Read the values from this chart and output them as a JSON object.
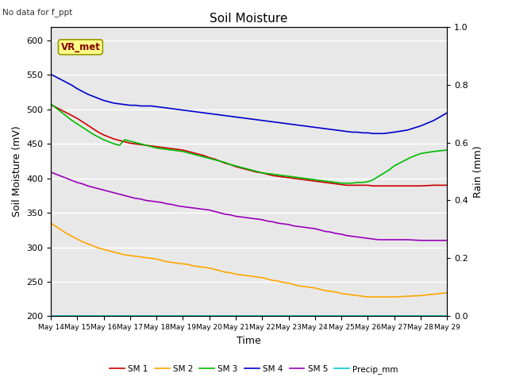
{
  "title": "Soil Moisture",
  "note": "No data for f_ppt",
  "xlabel": "Time",
  "ylabel_left": "Soil Moisture (mV)",
  "ylabel_right": "Rain (mm)",
  "vr_met_label": "VR_met",
  "x_start": 14,
  "x_end": 29,
  "ylim_left": [
    200,
    620
  ],
  "ylim_right": [
    0.0,
    1.0
  ],
  "yticks_left": [
    200,
    250,
    300,
    350,
    400,
    450,
    500,
    550,
    600
  ],
  "yticks_right": [
    0.0,
    0.2,
    0.4,
    0.6,
    0.8,
    1.0
  ],
  "x_ticks": [
    14,
    15,
    16,
    17,
    18,
    19,
    20,
    21,
    22,
    23,
    24,
    25,
    26,
    27,
    28,
    29
  ],
  "x_tick_labels": [
    "May 14",
    "May 15",
    "May 16",
    "May 17",
    "May 18",
    "May 19",
    "May 20",
    "May 21",
    "May 22",
    "May 23",
    "May 24",
    "May 25",
    "May 26",
    "May 27",
    "May 28",
    "May 29"
  ],
  "background_color": "#e8e8e8",
  "grid_color": "#ffffff",
  "series": {
    "SM1": {
      "color": "#cc0000",
      "label": "SM 1",
      "x": [
        14,
        14.2,
        14.4,
        14.6,
        14.8,
        15,
        15.2,
        15.4,
        15.6,
        15.8,
        16,
        16.2,
        16.4,
        16.6,
        16.8,
        17,
        17.2,
        17.4,
        17.6,
        17.8,
        18,
        18.2,
        18.4,
        18.6,
        18.8,
        19,
        19.2,
        19.4,
        19.6,
        19.8,
        20,
        20.2,
        20.4,
        20.6,
        20.8,
        21,
        21.2,
        21.4,
        21.6,
        21.8,
        22,
        22.2,
        22.4,
        22.6,
        22.8,
        23,
        23.2,
        23.4,
        23.6,
        23.8,
        24,
        24.2,
        24.4,
        24.6,
        24.8,
        25,
        25.2,
        25.4,
        25.6,
        25.8,
        26,
        26.2,
        26.4,
        26.6,
        26.8,
        27,
        27.5,
        28,
        28.5,
        29
      ],
      "y": [
        507,
        503,
        499,
        495,
        491,
        487,
        482,
        477,
        472,
        467,
        463,
        460,
        457,
        455,
        453,
        451,
        450,
        449,
        448,
        447,
        446,
        445,
        444,
        443,
        442,
        441,
        439,
        437,
        435,
        433,
        430,
        428,
        425,
        422,
        420,
        417,
        415,
        413,
        411,
        409,
        408,
        406,
        404,
        403,
        402,
        401,
        400,
        399,
        398,
        397,
        396,
        395,
        394,
        393,
        392,
        391,
        390,
        390,
        390,
        390,
        390,
        389,
        389,
        389,
        389,
        389,
        389,
        389,
        390,
        390
      ]
    },
    "SM2": {
      "color": "#ffa500",
      "label": "SM 2",
      "x": [
        14,
        14.2,
        14.4,
        14.6,
        14.8,
        15,
        15.2,
        15.4,
        15.6,
        15.8,
        16,
        16.2,
        16.4,
        16.6,
        16.8,
        17,
        17.2,
        17.4,
        17.6,
        17.8,
        18,
        18.2,
        18.4,
        18.6,
        18.8,
        19,
        19.2,
        19.4,
        19.6,
        19.8,
        20,
        20.2,
        20.4,
        20.6,
        20.8,
        21,
        21.2,
        21.4,
        21.6,
        21.8,
        22,
        22.2,
        22.4,
        22.6,
        22.8,
        23,
        23.2,
        23.4,
        23.6,
        23.8,
        24,
        24.2,
        24.4,
        24.6,
        24.8,
        25,
        25.2,
        25.4,
        25.6,
        25.8,
        26,
        26.2,
        26.4,
        26.6,
        26.8,
        27,
        27.5,
        28,
        28.5,
        29
      ],
      "y": [
        335,
        330,
        325,
        320,
        316,
        312,
        308,
        305,
        302,
        299,
        297,
        295,
        293,
        291,
        289,
        288,
        287,
        286,
        285,
        284,
        283,
        281,
        279,
        278,
        277,
        276,
        275,
        273,
        272,
        271,
        270,
        268,
        266,
        264,
        263,
        261,
        260,
        259,
        258,
        257,
        256,
        254,
        252,
        251,
        249,
        248,
        246,
        244,
        243,
        242,
        241,
        239,
        237,
        236,
        235,
        233,
        232,
        231,
        230,
        229,
        228,
        228,
        228,
        228,
        228,
        228,
        229,
        230,
        232,
        234
      ]
    },
    "SM3": {
      "color": "#00bb00",
      "label": "SM 3",
      "x": [
        14,
        14.2,
        14.4,
        14.6,
        14.8,
        15,
        15.2,
        15.4,
        15.6,
        15.8,
        16,
        16.2,
        16.4,
        16.6,
        16.8,
        17,
        17.2,
        17.4,
        17.6,
        17.8,
        18,
        18.2,
        18.4,
        18.6,
        18.8,
        19,
        19.2,
        19.4,
        19.6,
        19.8,
        20,
        20.2,
        20.4,
        20.6,
        20.8,
        21,
        21.2,
        21.4,
        21.6,
        21.8,
        22,
        22.2,
        22.4,
        22.6,
        22.8,
        23,
        23.2,
        23.4,
        23.6,
        23.8,
        24,
        24.2,
        24.4,
        24.6,
        24.8,
        25,
        25.2,
        25.4,
        25.6,
        25.8,
        26,
        26.2,
        26.5,
        26.8,
        27,
        27.3,
        27.6,
        28,
        28.5,
        29
      ],
      "y": [
        508,
        502,
        496,
        490,
        484,
        479,
        474,
        469,
        464,
        460,
        456,
        453,
        450,
        448,
        456,
        454,
        452,
        450,
        448,
        446,
        444,
        443,
        442,
        441,
        440,
        439,
        437,
        435,
        433,
        431,
        429,
        427,
        425,
        423,
        420,
        418,
        416,
        414,
        412,
        410,
        408,
        407,
        406,
        405,
        404,
        403,
        402,
        401,
        400,
        399,
        398,
        397,
        396,
        395,
        394,
        393,
        393,
        393,
        394,
        394,
        395,
        398,
        405,
        412,
        418,
        424,
        430,
        436,
        439,
        441
      ]
    },
    "SM4": {
      "color": "#0000cc",
      "label": "SM 4",
      "x": [
        14,
        14.2,
        14.4,
        14.6,
        14.8,
        15,
        15.2,
        15.4,
        15.6,
        15.8,
        16,
        16.2,
        16.4,
        16.6,
        16.8,
        17,
        17.2,
        17.4,
        17.6,
        17.8,
        18,
        18.2,
        18.4,
        18.6,
        18.8,
        19,
        19.2,
        19.4,
        19.6,
        19.8,
        20,
        20.2,
        20.4,
        20.6,
        20.8,
        21,
        21.2,
        21.4,
        21.6,
        21.8,
        22,
        22.2,
        22.4,
        22.6,
        22.8,
        23,
        23.2,
        23.4,
        23.6,
        23.8,
        24,
        24.2,
        24.4,
        24.6,
        24.8,
        25,
        25.2,
        25.4,
        25.6,
        25.8,
        26,
        26.2,
        26.4,
        26.6,
        26.8,
        27,
        27.5,
        28,
        28.5,
        29
      ],
      "y": [
        551,
        547,
        543,
        539,
        535,
        530,
        526,
        522,
        519,
        516,
        513,
        511,
        509,
        508,
        507,
        506,
        506,
        505,
        505,
        505,
        504,
        503,
        502,
        501,
        500,
        499,
        498,
        497,
        496,
        495,
        494,
        493,
        492,
        491,
        490,
        489,
        488,
        487,
        486,
        485,
        484,
        483,
        482,
        481,
        480,
        479,
        478,
        477,
        476,
        475,
        474,
        473,
        472,
        471,
        470,
        469,
        468,
        467,
        467,
        466,
        466,
        465,
        465,
        465,
        466,
        467,
        470,
        476,
        484,
        495
      ]
    },
    "SM5": {
      "color": "#9900bb",
      "label": "SM 5",
      "x": [
        14,
        14.2,
        14.4,
        14.6,
        14.8,
        15,
        15.2,
        15.4,
        15.6,
        15.8,
        16,
        16.2,
        16.4,
        16.6,
        16.8,
        17,
        17.2,
        17.4,
        17.6,
        17.8,
        18,
        18.2,
        18.4,
        18.6,
        18.8,
        19,
        19.2,
        19.4,
        19.6,
        19.8,
        20,
        20.2,
        20.4,
        20.6,
        20.8,
        21,
        21.2,
        21.4,
        21.6,
        21.8,
        22,
        22.2,
        22.4,
        22.6,
        22.8,
        23,
        23.2,
        23.4,
        23.6,
        23.8,
        24,
        24.2,
        24.4,
        24.6,
        24.8,
        25,
        25.2,
        25.4,
        25.6,
        25.8,
        26,
        26.2,
        26.4,
        26.6,
        26.8,
        27,
        27.5,
        28,
        28.5,
        29
      ],
      "y": [
        409,
        406,
        403,
        400,
        397,
        394,
        392,
        389,
        387,
        385,
        383,
        381,
        379,
        377,
        375,
        373,
        371,
        370,
        368,
        367,
        366,
        365,
        363,
        362,
        360,
        359,
        358,
        357,
        356,
        355,
        354,
        352,
        350,
        348,
        347,
        345,
        344,
        343,
        342,
        341,
        340,
        338,
        337,
        335,
        334,
        333,
        331,
        330,
        329,
        328,
        327,
        325,
        323,
        322,
        320,
        319,
        317,
        316,
        315,
        314,
        313,
        312,
        311,
        311,
        311,
        311,
        311,
        310,
        310,
        310
      ]
    },
    "Precip": {
      "color": "#00cccc",
      "label": "Precip_mm",
      "x": [
        14,
        29
      ],
      "y": [
        200,
        200
      ]
    }
  }
}
